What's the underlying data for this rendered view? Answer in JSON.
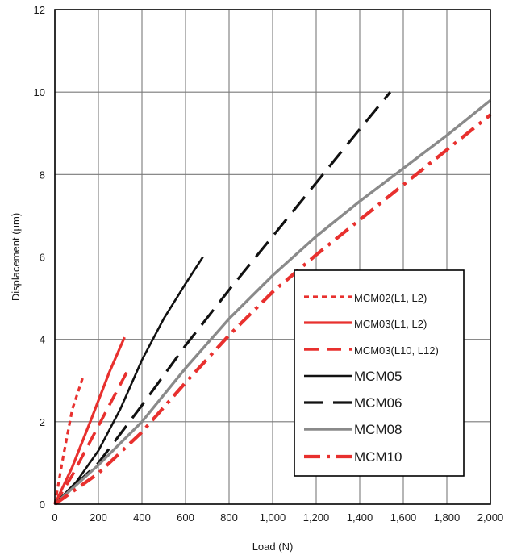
{
  "chart_data": {
    "type": "line",
    "xlabel": "Load (N)",
    "ylabel": "Displacement (μm)",
    "xlim": [
      0,
      2000
    ],
    "ylim": [
      0,
      12
    ],
    "x_ticks": [
      0,
      200,
      400,
      600,
      800,
      1000,
      1200,
      1400,
      1600,
      1800,
      2000
    ],
    "x_tick_labels": [
      "0",
      "200",
      "400",
      "600",
      "800",
      "1,000",
      "1,200",
      "1,400",
      "1,600",
      "1,800",
      "2,000"
    ],
    "y_ticks": [
      0,
      2,
      4,
      6,
      8,
      10,
      12
    ],
    "y_tick_labels": [
      "0",
      "2",
      "4",
      "6",
      "8",
      "10",
      "12"
    ],
    "grid": true,
    "legend_position": "center-right",
    "series": [
      {
        "name": "MCM02(L1, L2)",
        "color": "#e8302e",
        "style": "dotted",
        "x": [
          0,
          40,
          80,
          130
        ],
        "y": [
          0,
          1.2,
          2.3,
          3.1
        ]
      },
      {
        "name": "MCM03(L1, L2)",
        "color": "#e8302e",
        "style": "solid",
        "x": [
          0,
          80,
          170,
          250,
          320
        ],
        "y": [
          0,
          0.9,
          2.1,
          3.2,
          4.05
        ]
      },
      {
        "name": "MCM03(L10, L12)",
        "color": "#e8302e",
        "style": "dashed",
        "x": [
          0,
          80,
          170,
          260,
          330
        ],
        "y": [
          0,
          0.7,
          1.6,
          2.5,
          3.2
        ]
      },
      {
        "name": "MCM05",
        "color": "#111111",
        "style": "solid",
        "x": [
          0,
          100,
          200,
          300,
          400,
          500,
          600,
          680
        ],
        "y": [
          0,
          0.55,
          1.3,
          2.3,
          3.5,
          4.5,
          5.35,
          6.0
        ]
      },
      {
        "name": "MCM06",
        "color": "#111111",
        "style": "longdash",
        "x": [
          0,
          200,
          400,
          600,
          800,
          1000,
          1200,
          1400,
          1540
        ],
        "y": [
          0,
          1.0,
          2.4,
          3.85,
          5.2,
          6.5,
          7.8,
          9.1,
          10.0
        ]
      },
      {
        "name": "MCM08",
        "color": "#8a8a8a",
        "style": "solid",
        "x": [
          0,
          200,
          400,
          600,
          800,
          1000,
          1200,
          1400,
          1600,
          1800,
          2000
        ],
        "y": [
          0,
          0.95,
          2.0,
          3.3,
          4.5,
          5.55,
          6.5,
          7.35,
          8.15,
          8.95,
          9.8
        ]
      },
      {
        "name": "MCM10",
        "color": "#e8302e",
        "style": "dashdot",
        "x": [
          0,
          200,
          400,
          600,
          800,
          1000,
          1200,
          1400,
          1600,
          1800,
          2000
        ],
        "y": [
          0,
          0.75,
          1.75,
          2.95,
          4.1,
          5.15,
          6.05,
          6.9,
          7.75,
          8.6,
          9.45
        ]
      }
    ]
  }
}
